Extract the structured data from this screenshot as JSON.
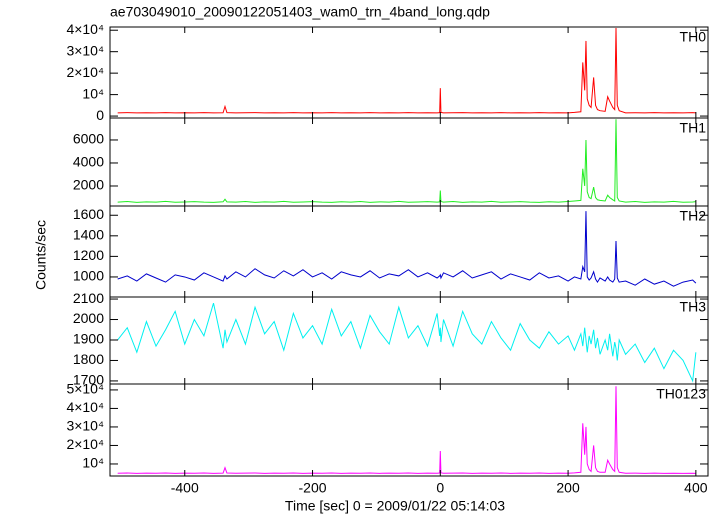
{
  "figure": {
    "title": "ae703049010_20090122051403_wam0_trn_4band_long.qdp",
    "xlabel": "Time [sec] 0 = 2009/01/22 05:14:03",
    "ylabel": "Counts/sec"
  },
  "chart_data": [
    {
      "type": "line",
      "xlim": [
        -517,
        419
      ],
      "xticks": [
        -400,
        -200,
        0,
        200,
        400
      ],
      "ylim": [
        -900,
        41500
      ],
      "yticks": [
        0,
        {
          "value": 10000,
          "label": "10⁴"
        },
        {
          "value": 20000,
          "label": "2×10⁴"
        },
        {
          "value": 30000,
          "label": "3×10⁴"
        },
        {
          "value": 40000,
          "label": "4×10⁴"
        }
      ],
      "x": [
        -505,
        -490,
        -475,
        -460,
        -445,
        -430,
        -415,
        -400,
        -385,
        -370,
        -355,
        -340,
        -337,
        -334,
        -320,
        -305,
        -290,
        -275,
        -260,
        -245,
        -230,
        -215,
        -200,
        -185,
        -170,
        -155,
        -140,
        -125,
        -110,
        -95,
        -80,
        -65,
        -50,
        -35,
        -20,
        -5,
        -1,
        0,
        1,
        5,
        20,
        35,
        50,
        65,
        80,
        95,
        110,
        125,
        140,
        155,
        170,
        185,
        200,
        210,
        220,
        223,
        226,
        228,
        230,
        233,
        236,
        240,
        243,
        246,
        250,
        258,
        262,
        265,
        270,
        273,
        275,
        277,
        280,
        290,
        305,
        320,
        335,
        350,
        365,
        380,
        395,
        400
      ],
      "series": [
        {
          "name": "TH0",
          "color": "#ff0000",
          "values": [
            1500,
            1600,
            1500,
            1550,
            1500,
            1600,
            1500,
            1550,
            1500,
            1600,
            1500,
            1550,
            4500,
            1600,
            1500,
            1550,
            1600,
            1500,
            1550,
            1500,
            1600,
            1500,
            1550,
            1500,
            1600,
            1500,
            1550,
            1500,
            1600,
            1500,
            1550,
            1500,
            1600,
            1500,
            1550,
            1500,
            1600,
            13000,
            1700,
            1500,
            1550,
            1600,
            1500,
            1550,
            1500,
            1600,
            1500,
            1550,
            1500,
            1600,
            1500,
            1550,
            1500,
            1700,
            2000,
            25000,
            12000,
            35000,
            8000,
            5000,
            4000,
            18000,
            5000,
            3000,
            2500,
            2200,
            9000,
            7000,
            4000,
            3000,
            41000,
            5000,
            2500,
            1500,
            1550,
            1500,
            1600,
            1500,
            1550,
            1500,
            1600,
            1500
          ]
        }
      ]
    },
    {
      "type": "line",
      "xlim": [
        -517,
        419
      ],
      "xticks": [
        -400,
        -200,
        0,
        200,
        400
      ],
      "ylim": [
        260,
        7910
      ],
      "yticks": [
        2000,
        4000,
        6000
      ],
      "x": [
        -505,
        -490,
        -475,
        -460,
        -445,
        -430,
        -415,
        -400,
        -385,
        -370,
        -355,
        -340,
        -337,
        -334,
        -320,
        -305,
        -290,
        -275,
        -260,
        -245,
        -230,
        -215,
        -200,
        -185,
        -170,
        -155,
        -140,
        -125,
        -110,
        -95,
        -80,
        -65,
        -50,
        -35,
        -20,
        -5,
        -1,
        0,
        1,
        5,
        20,
        35,
        50,
        65,
        80,
        95,
        110,
        125,
        140,
        155,
        170,
        185,
        200,
        210,
        220,
        223,
        226,
        228,
        230,
        233,
        236,
        240,
        243,
        246,
        250,
        258,
        262,
        265,
        270,
        273,
        275,
        277,
        280,
        290,
        305,
        320,
        335,
        350,
        365,
        380,
        395,
        400
      ],
      "series": [
        {
          "name": "TH1",
          "color": "#22ee22",
          "values": [
            600,
            650,
            580,
            620,
            600,
            660,
            590,
            610,
            640,
            600,
            580,
            630,
            850,
            620,
            600,
            650,
            580,
            620,
            600,
            660,
            590,
            610,
            640,
            600,
            580,
            630,
            600,
            650,
            580,
            620,
            600,
            660,
            590,
            610,
            640,
            600,
            620,
            1600,
            650,
            600,
            650,
            580,
            620,
            600,
            660,
            590,
            610,
            640,
            600,
            580,
            630,
            600,
            650,
            700,
            750,
            3500,
            2000,
            6000,
            1500,
            1000,
            900,
            1900,
            1000,
            800,
            750,
            700,
            1200,
            1000,
            800,
            700,
            7800,
            1000,
            700,
            600,
            650,
            580,
            620,
            600,
            660,
            590,
            610,
            640
          ]
        }
      ]
    },
    {
      "type": "line",
      "xlim": [
        -517,
        419
      ],
      "xticks": [
        -400,
        -200,
        0,
        200,
        400
      ],
      "ylim": [
        805,
        1690
      ],
      "yticks": [
        1000,
        1200,
        1400,
        1600
      ],
      "x": [
        -505,
        -490,
        -475,
        -460,
        -445,
        -430,
        -415,
        -400,
        -385,
        -370,
        -355,
        -340,
        -337,
        -334,
        -320,
        -305,
        -290,
        -275,
        -260,
        -245,
        -230,
        -215,
        -200,
        -185,
        -170,
        -155,
        -140,
        -125,
        -110,
        -95,
        -80,
        -65,
        -50,
        -35,
        -20,
        -5,
        -1,
        0,
        1,
        5,
        20,
        35,
        50,
        65,
        80,
        95,
        110,
        125,
        140,
        155,
        170,
        185,
        200,
        210,
        220,
        223,
        226,
        228,
        230,
        233,
        236,
        240,
        243,
        246,
        250,
        258,
        262,
        265,
        270,
        273,
        275,
        277,
        280,
        290,
        305,
        320,
        335,
        350,
        365,
        380,
        395,
        400
      ],
      "series": [
        {
          "name": "TH2",
          "color": "#0000cc",
          "values": [
            980,
            1010,
            960,
            1030,
            990,
            950,
            1020,
            1000,
            970,
            1040,
            1000,
            960,
            1010,
            980,
            1050,
            1000,
            1080,
            1020,
            990,
            1060,
            1010,
            1070,
            1000,
            1040,
            980,
            1050,
            1020,
            1000,
            1060,
            990,
            1030,
            1010,
            1070,
            1000,
            1040,
            990,
            1010,
            1020,
            990,
            1040,
            1000,
            1060,
            990,
            1020,
            1050,
            980,
            1030,
            1000,
            970,
            1040,
            990,
            1010,
            960,
            1000,
            980,
            1100,
            1050,
            1640,
            1000,
            970,
            990,
            1050,
            980,
            950,
            990,
            960,
            1000,
            970,
            950,
            980,
            1350,
            990,
            950,
            960,
            920,
            980,
            930,
            960,
            910,
            950,
            970,
            940
          ]
        }
      ]
    },
    {
      "type": "line",
      "xlim": [
        -517,
        419
      ],
      "xticks": [
        -400,
        -200,
        0,
        200,
        400
      ],
      "ylim": [
        1685,
        2110
      ],
      "yticks": [
        1700,
        1800,
        1900,
        2000,
        2100
      ],
      "x": [
        -505,
        -490,
        -475,
        -460,
        -445,
        -430,
        -415,
        -400,
        -385,
        -370,
        -355,
        -340,
        -337,
        -334,
        -320,
        -305,
        -290,
        -275,
        -260,
        -245,
        -230,
        -215,
        -200,
        -185,
        -170,
        -155,
        -140,
        -125,
        -110,
        -95,
        -80,
        -65,
        -50,
        -35,
        -20,
        -5,
        -1,
        0,
        1,
        5,
        20,
        35,
        50,
        65,
        80,
        95,
        110,
        125,
        140,
        155,
        170,
        185,
        200,
        210,
        220,
        223,
        226,
        228,
        230,
        233,
        236,
        240,
        243,
        246,
        250,
        258,
        262,
        265,
        270,
        273,
        275,
        277,
        280,
        290,
        305,
        320,
        335,
        350,
        365,
        380,
        395,
        400
      ],
      "series": [
        {
          "name": "TH3",
          "color": "#00f0f0",
          "values": [
            1900,
            1960,
            1840,
            1990,
            1870,
            1950,
            2040,
            1880,
            2000,
            1920,
            2080,
            1860,
            1950,
            1890,
            2000,
            1880,
            2060,
            1930,
            1990,
            1850,
            2030,
            1910,
            1970,
            1880,
            2050,
            1920,
            1990,
            1860,
            2020,
            1940,
            1880,
            2060,
            1910,
            1970,
            1870,
            2030,
            1920,
            1960,
            1890,
            2000,
            1870,
            2040,
            1930,
            1880,
            1990,
            1910,
            1850,
            1980,
            1900,
            1860,
            1940,
            1880,
            1920,
            1850,
            1930,
            1870,
            1960,
            1900,
            1840,
            1920,
            1880,
            1950,
            1860,
            1910,
            1830,
            1900,
            1850,
            1930,
            1820,
            1890,
            1860,
            1800,
            1900,
            1830,
            1880,
            1790,
            1860,
            1760,
            1850,
            1800,
            1700,
            1840
          ]
        }
      ]
    },
    {
      "type": "line",
      "xlim": [
        -517,
        419
      ],
      "xticks": [
        -400,
        -200,
        0,
        200,
        400
      ],
      "ylim": [
        3500,
        53200
      ],
      "yticks": [
        {
          "value": 10000,
          "label": "10⁴"
        },
        {
          "value": 20000,
          "label": "2×10⁴"
        },
        {
          "value": 30000,
          "label": "3×10⁴"
        },
        {
          "value": 40000,
          "label": "4×10⁴"
        },
        {
          "value": 50000,
          "label": "5×10⁴"
        }
      ],
      "x": [
        -505,
        -490,
        -475,
        -460,
        -445,
        -430,
        -415,
        -400,
        -385,
        -370,
        -355,
        -340,
        -337,
        -334,
        -320,
        -305,
        -290,
        -275,
        -260,
        -245,
        -230,
        -215,
        -200,
        -185,
        -170,
        -155,
        -140,
        -125,
        -110,
        -95,
        -80,
        -65,
        -50,
        -35,
        -20,
        -5,
        -1,
        0,
        1,
        5,
        20,
        35,
        50,
        65,
        80,
        95,
        110,
        125,
        140,
        155,
        170,
        185,
        200,
        210,
        220,
        223,
        226,
        228,
        230,
        233,
        236,
        240,
        243,
        246,
        250,
        258,
        262,
        265,
        270,
        273,
        275,
        277,
        280,
        290,
        305,
        320,
        335,
        350,
        365,
        380,
        395,
        400
      ],
      "series": [
        {
          "name": "TH0123",
          "color": "#ff00ff",
          "values": [
            5000,
            5100,
            4900,
            5050,
            5000,
            5100,
            4950,
            5050,
            5000,
            5100,
            4900,
            5050,
            8000,
            5100,
            5000,
            5050,
            5100,
            4950,
            5050,
            5000,
            5100,
            4950,
            5050,
            5000,
            5100,
            4950,
            5050,
            5000,
            5100,
            4950,
            5050,
            5000,
            5100,
            4950,
            5050,
            5000,
            5100,
            17000,
            5200,
            5000,
            5050,
            5100,
            4950,
            5050,
            5000,
            5100,
            4950,
            5050,
            5000,
            5100,
            4950,
            5050,
            5000,
            5200,
            5500,
            32000,
            15000,
            30000,
            10000,
            7000,
            6000,
            20000,
            8000,
            6000,
            5500,
            5500,
            12000,
            10000,
            7000,
            6000,
            52000,
            8000,
            5500,
            5000,
            5050,
            4950,
            5050,
            4900,
            5000,
            4950,
            5000,
            4900
          ]
        }
      ]
    }
  ]
}
